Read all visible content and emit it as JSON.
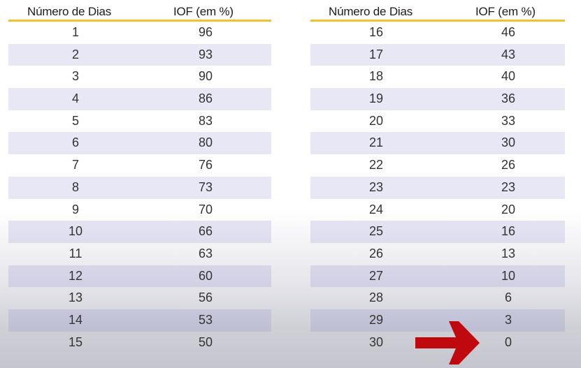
{
  "header": {
    "days_label": "Número de Dias",
    "iof_label": "IOF (em %)"
  },
  "left_rows": [
    {
      "day": "1",
      "iof": "96"
    },
    {
      "day": "2",
      "iof": "93"
    },
    {
      "day": "3",
      "iof": "90"
    },
    {
      "day": "4",
      "iof": "86"
    },
    {
      "day": "5",
      "iof": "83"
    },
    {
      "day": "6",
      "iof": "80"
    },
    {
      "day": "7",
      "iof": "76"
    },
    {
      "day": "8",
      "iof": "73"
    },
    {
      "day": "9",
      "iof": "70"
    },
    {
      "day": "10",
      "iof": "66"
    },
    {
      "day": "11",
      "iof": "63"
    },
    {
      "day": "12",
      "iof": "60"
    },
    {
      "day": "13",
      "iof": "56"
    },
    {
      "day": "14",
      "iof": "53"
    },
    {
      "day": "15",
      "iof": "50"
    }
  ],
  "right_rows": [
    {
      "day": "16",
      "iof": "46"
    },
    {
      "day": "17",
      "iof": "43"
    },
    {
      "day": "18",
      "iof": "40"
    },
    {
      "day": "19",
      "iof": "36"
    },
    {
      "day": "20",
      "iof": "33"
    },
    {
      "day": "21",
      "iof": "30"
    },
    {
      "day": "22",
      "iof": "26"
    },
    {
      "day": "23",
      "iof": "23"
    },
    {
      "day": "24",
      "iof": "20"
    },
    {
      "day": "25",
      "iof": "16"
    },
    {
      "day": "26",
      "iof": "13"
    },
    {
      "day": "27",
      "iof": "10"
    },
    {
      "day": "28",
      "iof": "6"
    },
    {
      "day": "29",
      "iof": "3"
    },
    {
      "day": "30",
      "iof": "0"
    }
  ],
  "colors": {
    "header_rule": "#f2c12e",
    "row_stripe": "#dcdaf0",
    "arrow": "#c0090f"
  },
  "icons": {
    "pointer": "red-arrow-right-icon"
  }
}
